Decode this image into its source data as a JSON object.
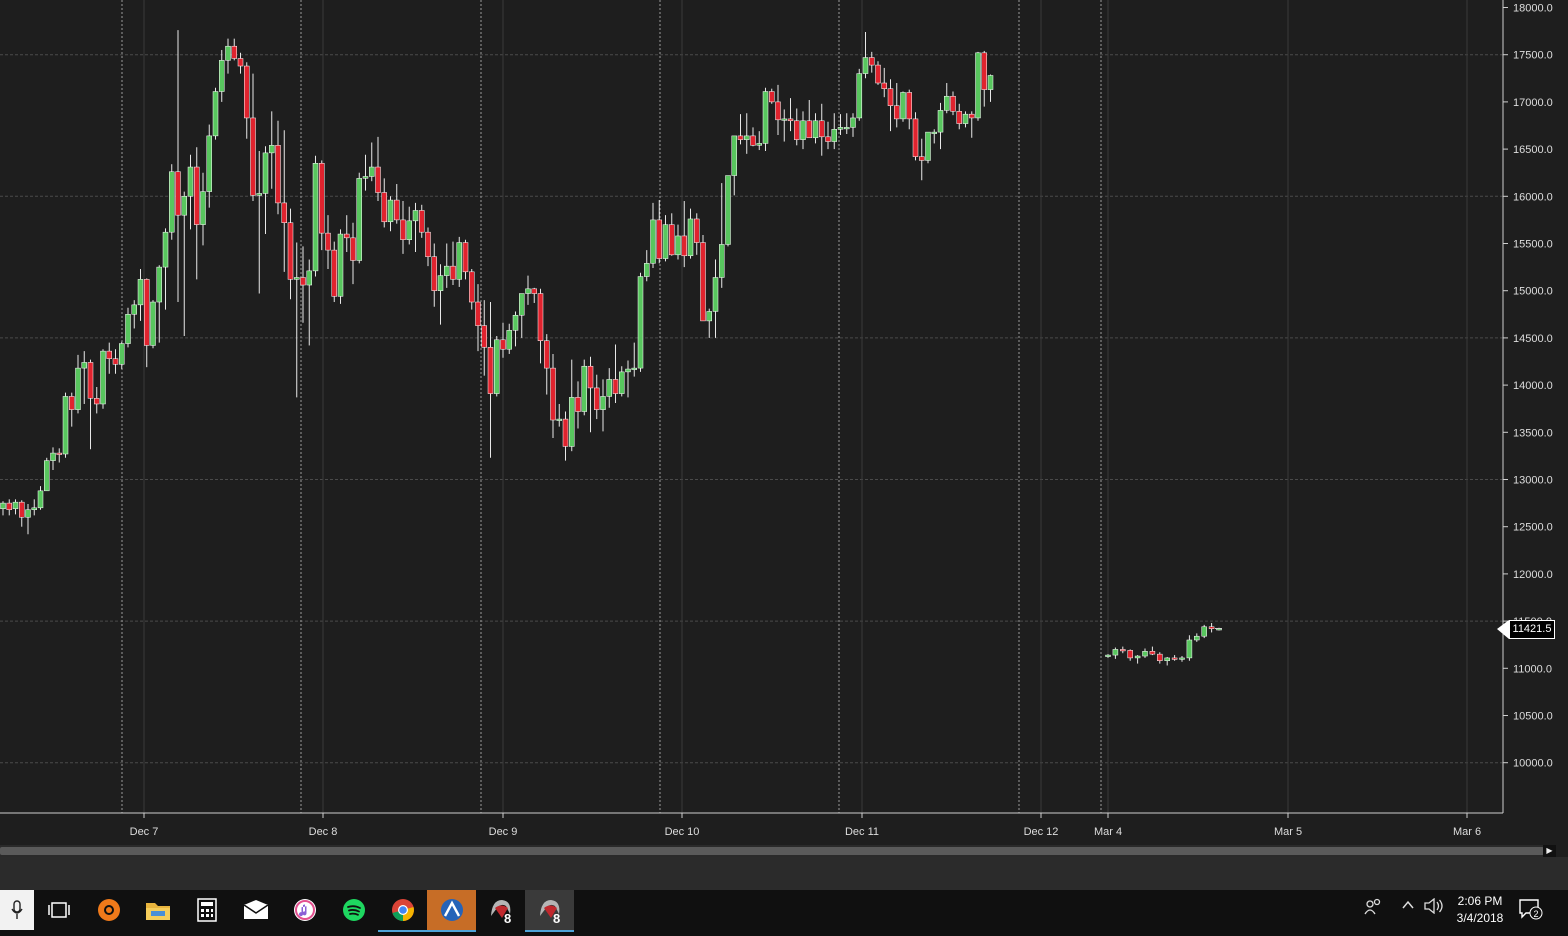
{
  "chart_data": {
    "type": "candlestick",
    "y_axis": {
      "labels": [
        "18000.0",
        "17500.0",
        "17000.0",
        "16500.0",
        "16000.0",
        "15500.0",
        "15000.0",
        "14500.0",
        "14000.0",
        "13500.0",
        "13000.0",
        "12500.0",
        "12000.0",
        "11500.0",
        "11000.0",
        "10500.0",
        "10000.0"
      ],
      "ylim": [
        9550,
        18050
      ]
    },
    "x_axis": {
      "labels": [
        "Dec 7",
        "Dec 8",
        "Dec 9",
        "Dec 10",
        "Dec 11",
        "Dec 12",
        "Mar 4",
        "Mar 5",
        "Mar 6"
      ]
    },
    "last_price": "11421.5",
    "colors": {
      "up": "#58c65e",
      "down": "#e0232e",
      "background": "#1e1e1e",
      "grid": "#4a4a4a",
      "axis_text": "#dddddd"
    },
    "series_dec": [
      [
        12690,
        12770,
        12620,
        12750
      ],
      [
        12750,
        12790,
        12620,
        12680
      ],
      [
        12690,
        12790,
        12630,
        12760
      ],
      [
        12760,
        12780,
        12500,
        12600
      ],
      [
        12600,
        12740,
        12420,
        12680
      ],
      [
        12680,
        12790,
        12620,
        12700
      ],
      [
        12700,
        12930,
        12680,
        12880
      ],
      [
        12880,
        13230,
        12880,
        13200
      ],
      [
        13200,
        13340,
        13100,
        13280
      ],
      [
        13280,
        13330,
        13180,
        13270
      ],
      [
        13270,
        13920,
        13230,
        13880
      ],
      [
        13880,
        13920,
        13560,
        13740
      ],
      [
        13740,
        14320,
        13700,
        14180
      ],
      [
        14180,
        14360,
        13800,
        14240
      ],
      [
        14240,
        14270,
        13320,
        13860
      ],
      [
        13860,
        13980,
        13700,
        13800
      ],
      [
        13800,
        14380,
        13750,
        14360
      ],
      [
        14360,
        14450,
        14120,
        14280
      ],
      [
        14280,
        14380,
        14120,
        14220
      ],
      [
        14220,
        14460,
        14170,
        14440
      ],
      [
        14440,
        14820,
        14400,
        14750
      ],
      [
        14750,
        14900,
        14600,
        14850
      ],
      [
        14850,
        15230,
        14680,
        15120
      ],
      [
        15120,
        15130,
        14190,
        14420
      ],
      [
        14420,
        14900,
        14390,
        14880
      ],
      [
        14880,
        15270,
        14450,
        15250
      ],
      [
        15250,
        15660,
        14800,
        15620
      ],
      [
        15620,
        16340,
        15540,
        16260
      ],
      [
        16260,
        17760,
        14880,
        15800
      ],
      [
        15800,
        16050,
        14520,
        16000
      ],
      [
        16000,
        16440,
        15650,
        16310
      ],
      [
        16310,
        16520,
        15120,
        15700
      ],
      [
        15700,
        16250,
        15480,
        16050
      ],
      [
        16050,
        16760,
        15880,
        16640
      ],
      [
        16640,
        17150,
        16600,
        17110
      ],
      [
        17110,
        17550,
        17000,
        17440
      ],
      [
        17440,
        17670,
        17300,
        17590
      ],
      [
        17590,
        17670,
        17440,
        17460
      ],
      [
        17460,
        17520,
        17300,
        17380
      ],
      [
        17380,
        17420,
        16610,
        16830
      ],
      [
        16830,
        17300,
        15950,
        16010
      ],
      [
        16010,
        16480,
        14970,
        16030
      ],
      [
        16030,
        16530,
        15600,
        16460
      ],
      [
        16460,
        16900,
        16080,
        16540
      ],
      [
        16540,
        16800,
        15810,
        15930
      ],
      [
        15930,
        16700,
        15200,
        15720
      ],
      [
        15720,
        15870,
        14910,
        15120
      ],
      [
        15120,
        15510,
        13870,
        15140
      ],
      [
        15140,
        15470,
        14660,
        15060
      ],
      [
        15060,
        15330,
        14420,
        15210
      ],
      [
        15210,
        16430,
        15150,
        16350
      ],
      [
        16350,
        16380,
        15430,
        15610
      ],
      [
        15610,
        15800,
        15230,
        15430
      ],
      [
        15430,
        15520,
        14880,
        14940
      ],
      [
        14940,
        15650,
        14860,
        15600
      ],
      [
        15600,
        15800,
        15410,
        15560
      ],
      [
        15560,
        15720,
        15070,
        15320
      ],
      [
        15320,
        16250,
        15290,
        16190
      ],
      [
        16190,
        16440,
        16060,
        16210
      ],
      [
        16210,
        16570,
        16160,
        16310
      ],
      [
        16310,
        16630,
        15950,
        16040
      ],
      [
        16040,
        16190,
        15670,
        15730
      ],
      [
        15730,
        16000,
        15630,
        15960
      ],
      [
        15960,
        16130,
        15710,
        15750
      ],
      [
        15750,
        15950,
        15390,
        15540
      ],
      [
        15540,
        15890,
        15490,
        15740
      ],
      [
        15740,
        15930,
        15410,
        15850
      ],
      [
        15850,
        15910,
        15560,
        15620
      ],
      [
        15620,
        15670,
        15260,
        15360
      ],
      [
        15360,
        15500,
        14830,
        15000
      ],
      [
        15000,
        15280,
        14640,
        15160
      ],
      [
        15160,
        15500,
        15030,
        15260
      ],
      [
        15260,
        15520,
        15060,
        15120
      ],
      [
        15120,
        15570,
        15040,
        15510
      ],
      [
        15510,
        15540,
        15120,
        15200
      ],
      [
        15200,
        15230,
        14800,
        14880
      ],
      [
        14880,
        15070,
        14360,
        14630
      ],
      [
        14630,
        14900,
        14100,
        14400
      ],
      [
        14400,
        14880,
        13230,
        13910
      ],
      [
        13910,
        14520,
        13880,
        14480
      ],
      [
        14480,
        14660,
        14290,
        14380
      ],
      [
        14380,
        14650,
        14330,
        14580
      ],
      [
        14580,
        14780,
        14410,
        14740
      ],
      [
        14740,
        14960,
        14500,
        14970
      ],
      [
        14970,
        15160,
        14850,
        15020
      ],
      [
        15020,
        15030,
        14870,
        14970
      ],
      [
        14970,
        15020,
        14230,
        14470
      ],
      [
        14470,
        14540,
        13900,
        14180
      ],
      [
        14180,
        14330,
        13440,
        13630
      ],
      [
        13630,
        13800,
        13560,
        13640
      ],
      [
        13640,
        13720,
        13200,
        13350
      ],
      [
        13350,
        14270,
        13300,
        13870
      ],
      [
        13870,
        14040,
        13540,
        13720
      ],
      [
        13720,
        14270,
        13680,
        14200
      ],
      [
        14200,
        14300,
        13500,
        13970
      ],
      [
        13970,
        14110,
        13640,
        13740
      ],
      [
        13740,
        14060,
        13510,
        13880
      ],
      [
        13880,
        14180,
        13760,
        14060
      ],
      [
        14060,
        14430,
        13810,
        13910
      ],
      [
        13910,
        14200,
        13880,
        14140
      ],
      [
        14140,
        14260,
        13870,
        14170
      ],
      [
        14170,
        14450,
        14090,
        14180
      ],
      [
        14180,
        15190,
        14140,
        15150
      ],
      [
        15150,
        15430,
        15100,
        15290
      ],
      [
        15290,
        15930,
        15240,
        15750
      ],
      [
        15750,
        15960,
        15290,
        15340
      ],
      [
        15340,
        15800,
        15310,
        15700
      ],
      [
        15700,
        15820,
        15370,
        15380
      ],
      [
        15380,
        15700,
        15330,
        15580
      ],
      [
        15580,
        15950,
        15250,
        15370
      ],
      [
        15370,
        15870,
        15340,
        15760
      ],
      [
        15760,
        15820,
        15380,
        15510
      ],
      [
        15510,
        15590,
        14710,
        14680
      ],
      [
        14680,
        14810,
        14500,
        14780
      ],
      [
        14780,
        15330,
        14500,
        15140
      ],
      [
        15140,
        16140,
        15030,
        15490
      ],
      [
        15490,
        16200,
        15470,
        16220
      ],
      [
        16220,
        16620,
        16010,
        16640
      ],
      [
        16640,
        16870,
        16550,
        16600
      ],
      [
        16600,
        16880,
        16450,
        16640
      ],
      [
        16640,
        16730,
        16530,
        16540
      ],
      [
        16540,
        16690,
        16490,
        16560
      ],
      [
        16560,
        17150,
        16480,
        17110
      ],
      [
        17110,
        17140,
        16980,
        17000
      ],
      [
        17000,
        17180,
        16650,
        16810
      ],
      [
        16810,
        16920,
        16580,
        16820
      ],
      [
        16820,
        17040,
        16690,
        16800
      ],
      [
        16800,
        16930,
        16540,
        16600
      ],
      [
        16600,
        16900,
        16500,
        16800
      ],
      [
        16800,
        17020,
        16620,
        16620
      ],
      [
        16620,
        16880,
        16560,
        16800
      ],
      [
        16800,
        16980,
        16430,
        16630
      ],
      [
        16630,
        16790,
        16500,
        16580
      ],
      [
        16580,
        16880,
        16500,
        16710
      ],
      [
        16710,
        16870,
        16650,
        16730
      ],
      [
        16730,
        16880,
        16660,
        16730
      ],
      [
        16730,
        16880,
        16630,
        16830
      ],
      [
        16830,
        17350,
        16800,
        17300
      ],
      [
        17300,
        17740,
        17250,
        17470
      ],
      [
        17470,
        17530,
        17310,
        17390
      ],
      [
        17390,
        17430,
        17180,
        17200
      ],
      [
        17200,
        17360,
        17050,
        17140
      ],
      [
        17140,
        17240,
        16690,
        16960
      ],
      [
        16960,
        17200,
        16730,
        16820
      ],
      [
        16820,
        17110,
        16790,
        17100
      ],
      [
        17100,
        17130,
        16710,
        16820
      ],
      [
        16820,
        16890,
        16380,
        16420
      ],
      [
        16420,
        16610,
        16170,
        16380
      ],
      [
        16380,
        16670,
        16350,
        16680
      ],
      [
        16680,
        16710,
        16560,
        16680
      ],
      [
        16680,
        16990,
        16500,
        16910
      ],
      [
        16910,
        17200,
        16880,
        17060
      ],
      [
        17060,
        17110,
        16860,
        16900
      ],
      [
        16900,
        16980,
        16710,
        16770
      ],
      [
        16770,
        16900,
        16730,
        16870
      ],
      [
        16870,
        16900,
        16620,
        16830
      ],
      [
        16830,
        17530,
        16800,
        17520
      ],
      [
        17520,
        17540,
        16950,
        17130
      ],
      [
        17130,
        17290,
        17000,
        17280
      ]
    ],
    "series_mar": [
      [
        11132,
        11150,
        11110,
        11140
      ],
      [
        11140,
        11220,
        11100,
        11200
      ],
      [
        11200,
        11230,
        11160,
        11190
      ],
      [
        11190,
        11200,
        11080,
        11110
      ],
      [
        11110,
        11140,
        11050,
        11130
      ],
      [
        11130,
        11210,
        11110,
        11180
      ],
      [
        11180,
        11230,
        11140,
        11150
      ],
      [
        11150,
        11170,
        11050,
        11080
      ],
      [
        11080,
        11120,
        11030,
        11110
      ],
      [
        11110,
        11140,
        11080,
        11100
      ],
      [
        11100,
        11130,
        11070,
        11110
      ],
      [
        11110,
        11350,
        11080,
        11300
      ],
      [
        11300,
        11370,
        11280,
        11340
      ],
      [
        11340,
        11460,
        11320,
        11440
      ],
      [
        11440,
        11480,
        11380,
        11420
      ],
      [
        11420,
        11430,
        11400,
        11421.5
      ]
    ]
  },
  "taskbar": {
    "apps": [
      "mic",
      "task-view",
      "avast",
      "file-explorer",
      "calculator",
      "mail",
      "itunes",
      "spotify",
      "chrome",
      "app-blue",
      "app-8a",
      "app-8b"
    ],
    "badge_a": "8",
    "badge_b": "8",
    "clock_time": "2:06 PM",
    "clock_date": "3/4/2018",
    "notif_count": "2"
  }
}
